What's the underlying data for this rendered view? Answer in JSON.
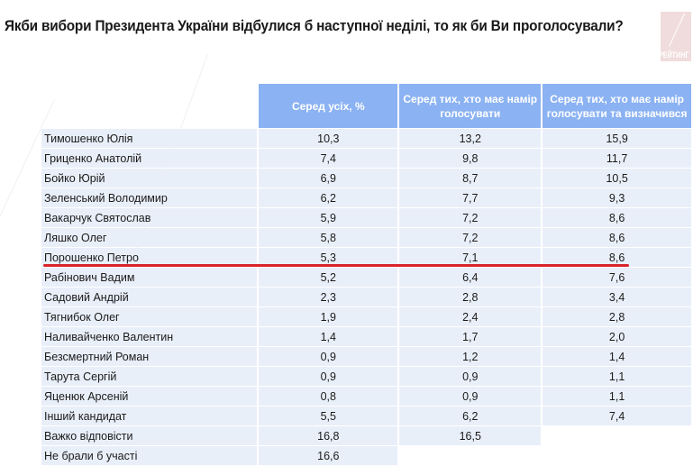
{
  "title": "Якби вибори Президента України відбулися б наступної неділі, то як би Ви проголосували?",
  "logo_text": "РЕЙТИНГ",
  "colors": {
    "header": "#8bb2f2",
    "row": "#e9eff9",
    "highlight_line": "#d9232a"
  },
  "table": {
    "columns": [
      "",
      "Серед усіх, %",
      "Серед тих, хто має намір голосувати",
      "Серед тих, хто має намір голосувати та визначився"
    ],
    "rows": [
      {
        "name": "Тимошенко Юлія",
        "all": "10,3",
        "voters": "13,2",
        "decided": "15,9"
      },
      {
        "name": "Гриценко Анатолій",
        "all": "7,4",
        "voters": "9,8",
        "decided": "11,7"
      },
      {
        "name": "Бойко Юрій",
        "all": "6,9",
        "voters": "8,7",
        "decided": "10,5"
      },
      {
        "name": "Зеленський Володимир",
        "all": "6,2",
        "voters": "7,7",
        "decided": "9,3"
      },
      {
        "name": "Вакарчук Святослав",
        "all": "5,9",
        "voters": "7,2",
        "decided": "8,6"
      },
      {
        "name": "Ляшко Олег",
        "all": "5,8",
        "voters": "7,2",
        "decided": "8,6"
      },
      {
        "name": "Порошенко Петро",
        "all": "5,3",
        "voters": "7,1",
        "decided": "8,6",
        "highlighted": true
      },
      {
        "name": "Рабінович Вадим",
        "all": "5,2",
        "voters": "6,4",
        "decided": "7,6"
      },
      {
        "name": "Садовий Андрій",
        "all": "2,3",
        "voters": "2,8",
        "decided": "3,4"
      },
      {
        "name": "Тягнибок Олег",
        "all": "1,9",
        "voters": "2,4",
        "decided": "2,8"
      },
      {
        "name": "Наливайченко Валентин",
        "all": "1,4",
        "voters": "1,7",
        "decided": "2,0"
      },
      {
        "name": "Безсмертний Роман",
        "all": "0,9",
        "voters": "1,2",
        "decided": "1,4"
      },
      {
        "name": "Тарута Сергій",
        "all": "0,9",
        "voters": "0,9",
        "decided": "1,1"
      },
      {
        "name": "Яценюк Арсеній",
        "all": "0,8",
        "voters": "0,9",
        "decided": "1,1"
      },
      {
        "name": "Інший кандидат",
        "all": "5,5",
        "voters": "6,2",
        "decided": "7,4"
      },
      {
        "name": "Важко відповісти",
        "all": "16,8",
        "voters": "16,5"
      },
      {
        "name": "Не брали б участі",
        "all": "16,6"
      }
    ]
  }
}
